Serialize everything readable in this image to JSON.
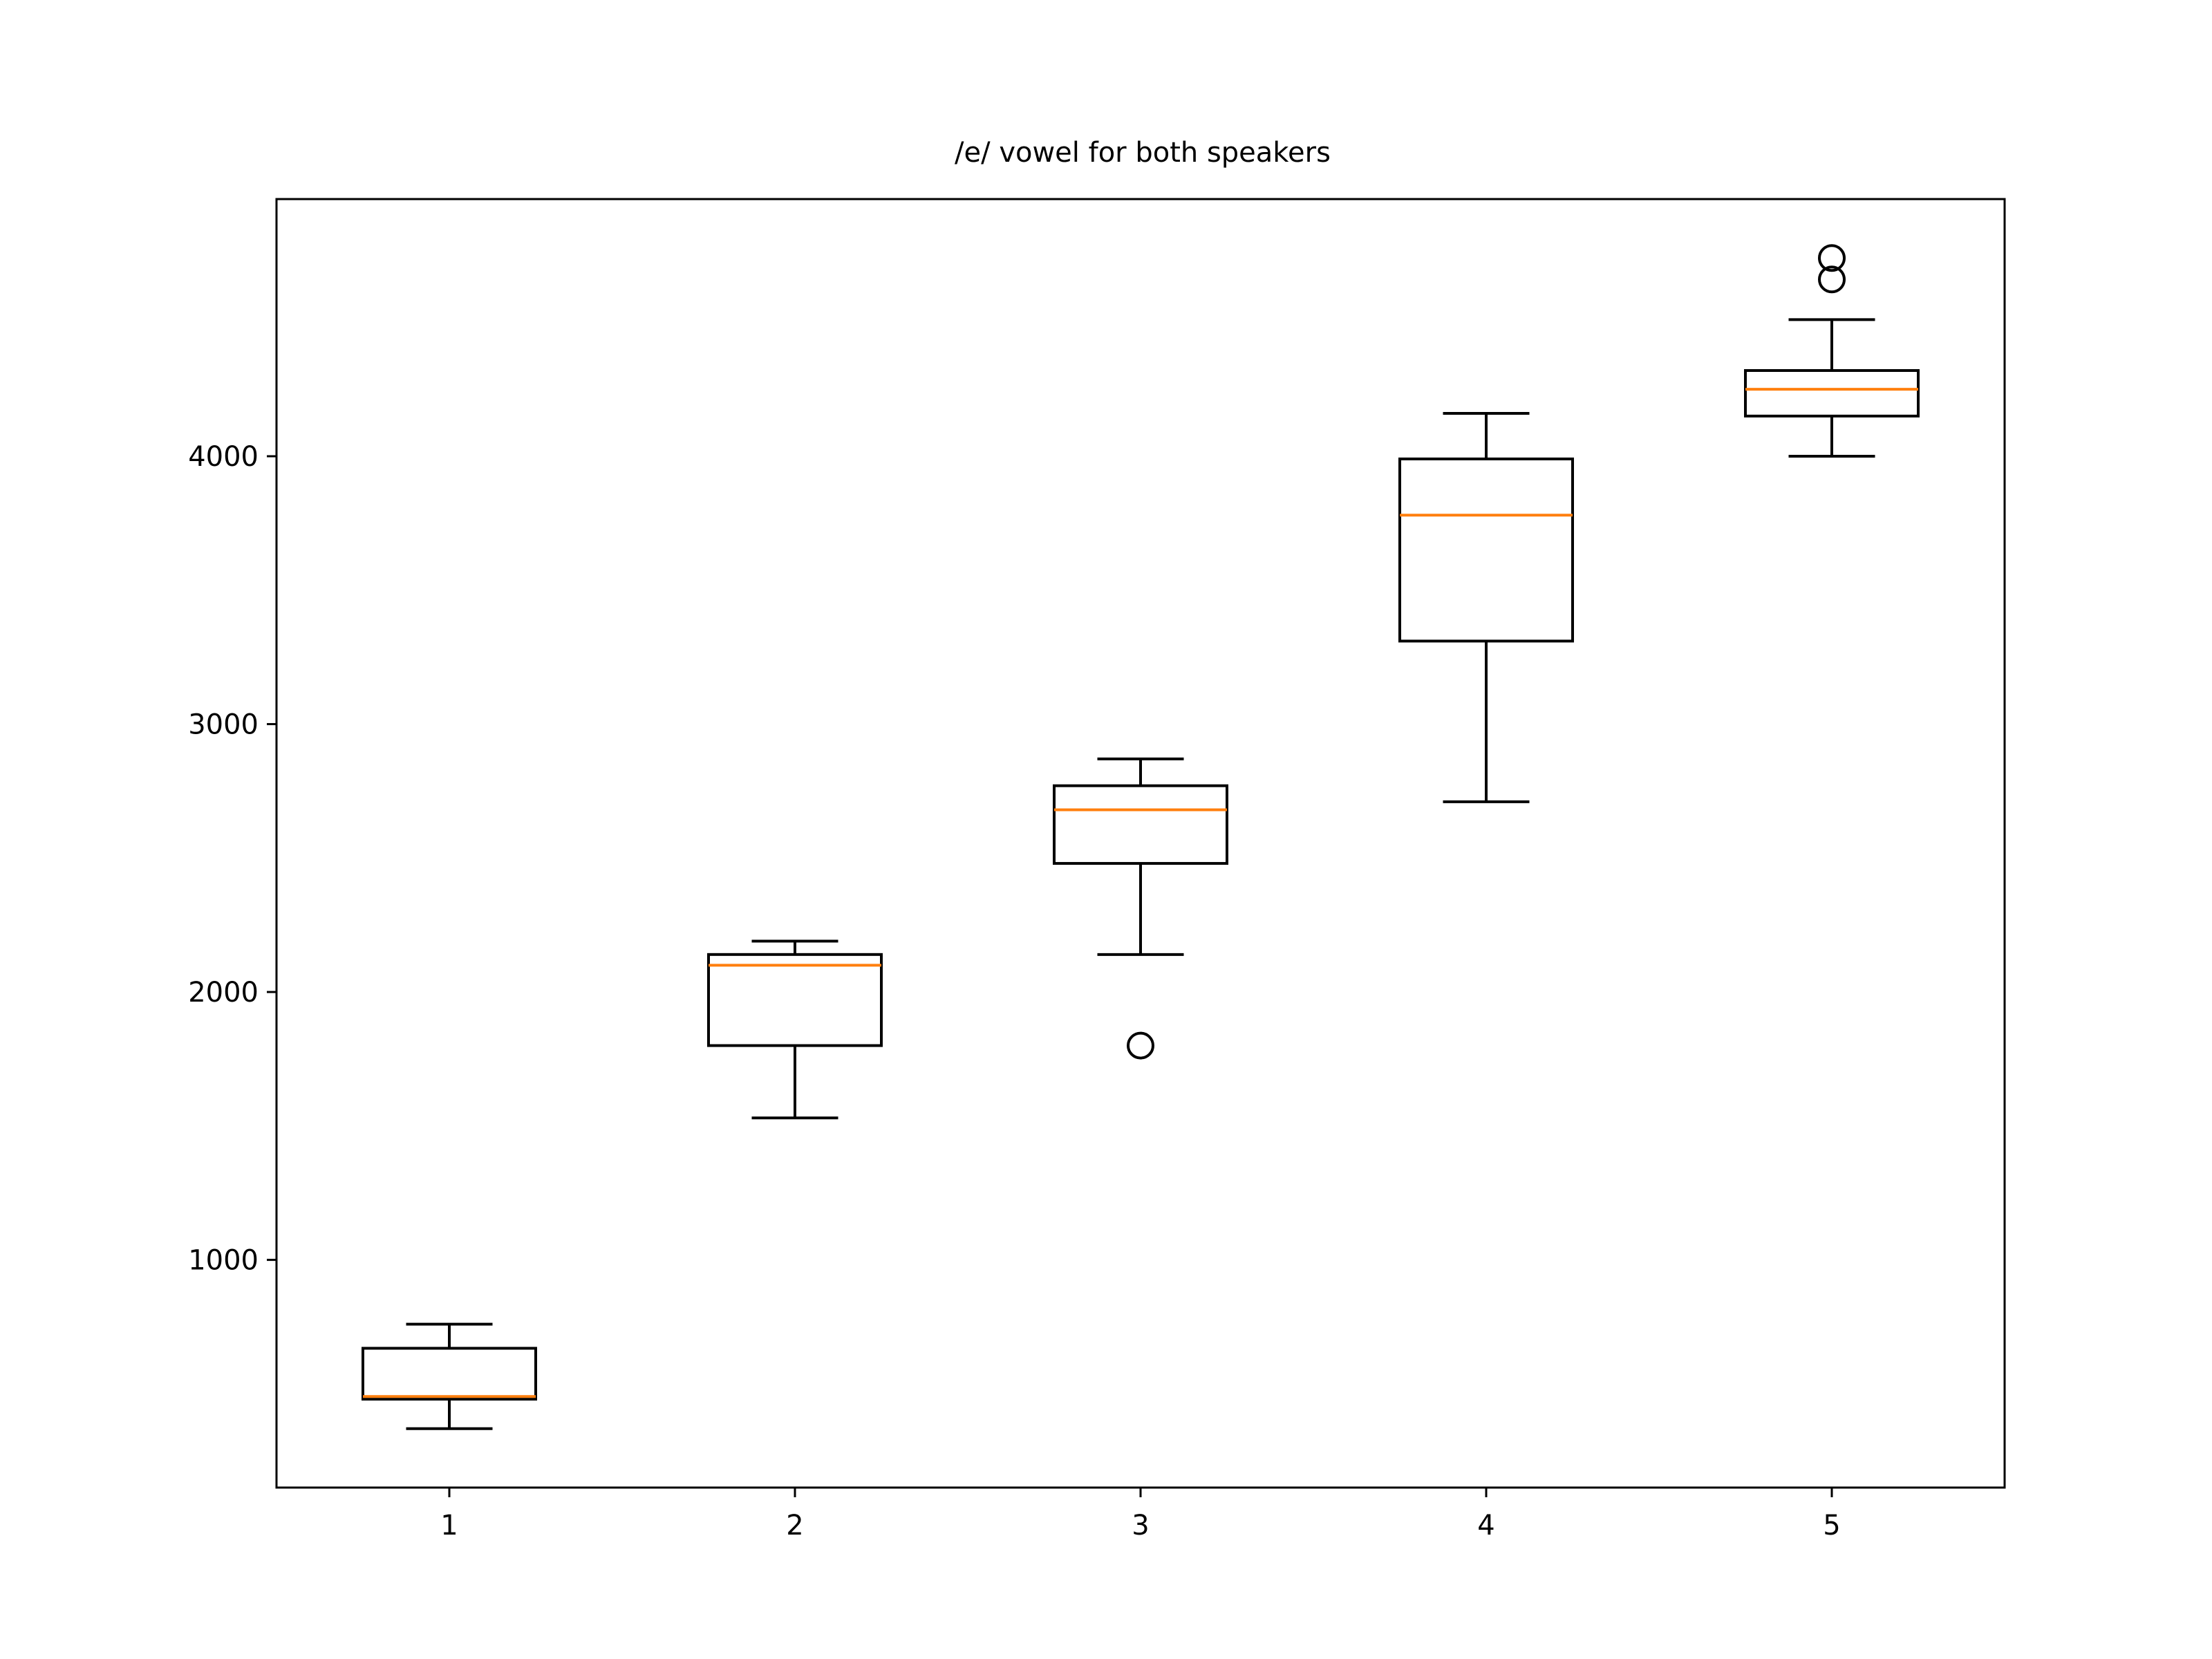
{
  "chart_data": {
    "type": "box",
    "title": "/e/ vowel for both speakers",
    "xlabel": "",
    "ylabel": "",
    "categories": [
      "1",
      "2",
      "3",
      "4",
      "5"
    ],
    "xticks": [
      "1",
      "2",
      "3",
      "4",
      "5"
    ],
    "yticks": [
      1000,
      2000,
      3000,
      4000
    ],
    "ytick_labels": [
      "1000",
      "2000",
      "3000",
      "4000"
    ],
    "ylim": [
      150,
      4960
    ],
    "xlim": [
      0.5,
      5.5
    ],
    "grid": false,
    "legend": null,
    "boxes": [
      {
        "category": "1",
        "whisker_low": 370,
        "q1": 480,
        "median": 490,
        "q3": 670,
        "whisker_high": 760,
        "outliers": []
      },
      {
        "category": "2",
        "whisker_low": 1530,
        "q1": 1800,
        "median": 2100,
        "q3": 2140,
        "whisker_high": 2190,
        "outliers": []
      },
      {
        "category": "3",
        "whisker_low": 2140,
        "q1": 2480,
        "median": 2680,
        "q3": 2770,
        "whisker_high": 2870,
        "outliers": [
          1800
        ]
      },
      {
        "category": "4",
        "whisker_low": 2710,
        "q1": 3310,
        "median": 3780,
        "q3": 3990,
        "whisker_high": 4160,
        "outliers": []
      },
      {
        "category": "5",
        "whisker_low": 4000,
        "q1": 4150,
        "median": 4250,
        "q3": 4320,
        "whisker_high": 4510,
        "outliers": [
          4660,
          4740
        ]
      }
    ],
    "colors": {
      "box": "#000000",
      "median": "#ff7f0e",
      "axes": "#000000",
      "background": "#ffffff"
    }
  }
}
